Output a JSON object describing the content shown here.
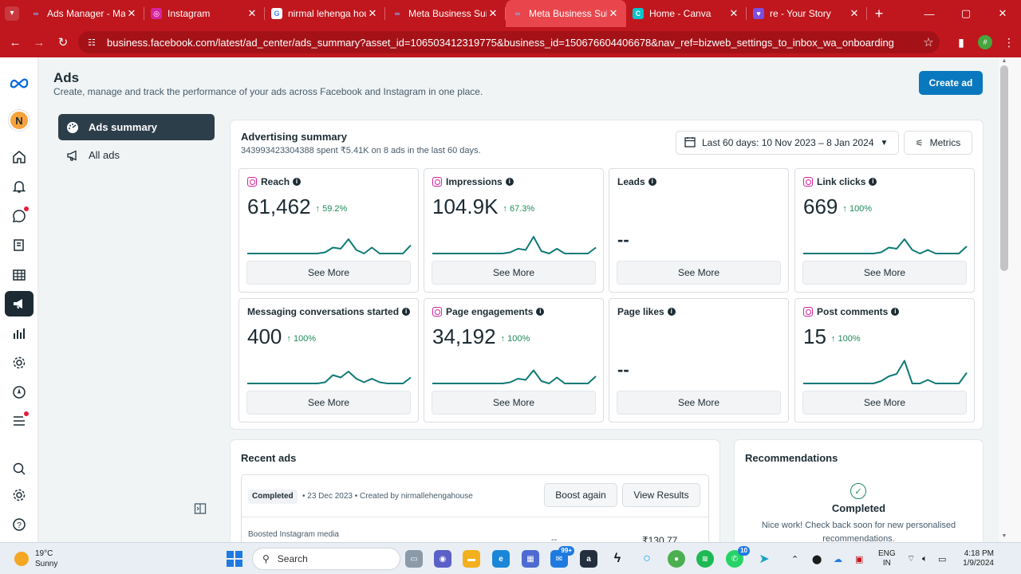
{
  "browser": {
    "tabs": [
      {
        "title": "Ads Manager - Mana",
        "icon": "meta-icon",
        "active": false
      },
      {
        "title": "Instagram",
        "icon": "instagram-icon",
        "active": false
      },
      {
        "title": "nirmal lehenga hous",
        "icon": "google-icon",
        "active": false
      },
      {
        "title": "Meta Business Suite",
        "icon": "meta-icon",
        "active": false
      },
      {
        "title": "Meta Business Suite",
        "icon": "meta-icon",
        "active": true
      },
      {
        "title": "Home - Canva",
        "icon": "canva-icon",
        "active": false
      },
      {
        "title": "re - Your Story",
        "icon": "shield-icon",
        "active": false
      }
    ],
    "url": "business.facebook.com/latest/ad_center/ads_summary?asset_id=106503412319775&business_id=150676604406678&nav_ref=bizweb_settings_to_inbox_wa_onboarding",
    "profile_initial": "#",
    "accent": "#c0161d"
  },
  "rail": {
    "avatar_initial": "N"
  },
  "page": {
    "title": "Ads",
    "subtitle": "Create, manage and track the performance of your ads across Facebook and Instagram in one place.",
    "create_label": "Create ad"
  },
  "subnav": {
    "items": [
      {
        "label": "Ads summary",
        "icon": "dashboard-icon",
        "active": true
      },
      {
        "label": "All ads",
        "icon": "megaphone-icon",
        "active": false
      }
    ]
  },
  "summary": {
    "title": "Advertising summary",
    "subtitle": "343993423304388 spent ₹5.41K on 8 ads in the last 60 days.",
    "date_range": "Last 60 days: 10 Nov 2023 – 8 Jan 2024",
    "metrics_label": "Metrics",
    "see_more": "See More",
    "cards": [
      {
        "label": "Reach",
        "ig": true,
        "value": "61,462",
        "change": "↑ 59.2%",
        "spark": [
          0,
          0,
          0,
          0,
          0,
          0,
          0,
          0,
          0,
          0,
          0.05,
          0.25,
          0.2,
          0.6,
          0.15,
          0.0,
          0.25,
          0.0,
          0.0,
          0.0,
          0.0,
          0.35
        ]
      },
      {
        "label": "Impressions",
        "ig": true,
        "value": "104.9K",
        "change": "↑ 67.3%",
        "spark": [
          0,
          0,
          0,
          0,
          0,
          0,
          0,
          0,
          0,
          0,
          0.05,
          0.2,
          0.15,
          0.7,
          0.1,
          0.0,
          0.2,
          0.0,
          0.0,
          0.0,
          0.0,
          0.25
        ]
      },
      {
        "label": "Leads",
        "ig": false,
        "value": "--",
        "change": "",
        "spark": []
      },
      {
        "label": "Link clicks",
        "ig": true,
        "value": "669",
        "change": "↑ 100%",
        "spark": [
          0,
          0,
          0,
          0,
          0,
          0,
          0,
          0,
          0,
          0,
          0.05,
          0.25,
          0.2,
          0.6,
          0.15,
          0.0,
          0.15,
          0.0,
          0.0,
          0.0,
          0.0,
          0.3
        ]
      },
      {
        "label": "Messaging conversations started",
        "ig": false,
        "value": "400",
        "change": "↑ 100%",
        "spark": [
          0,
          0,
          0,
          0,
          0,
          0,
          0,
          0,
          0,
          0,
          0.05,
          0.35,
          0.25,
          0.5,
          0.2,
          0.05,
          0.2,
          0.05,
          0.0,
          0.0,
          0.0,
          0.25
        ]
      },
      {
        "label": "Page engagements",
        "ig": true,
        "value": "34,192",
        "change": "↑ 100%",
        "spark": [
          0,
          0,
          0,
          0,
          0,
          0,
          0,
          0,
          0,
          0,
          0.05,
          0.2,
          0.15,
          0.55,
          0.1,
          0.0,
          0.25,
          0.0,
          0.0,
          0.0,
          0.0,
          0.3
        ]
      },
      {
        "label": "Page likes",
        "ig": false,
        "value": "--",
        "change": "",
        "spark": []
      },
      {
        "label": "Post comments",
        "ig": true,
        "value": "15",
        "change": "↑ 100%",
        "spark": [
          0,
          0,
          0,
          0,
          0,
          0,
          0,
          0,
          0,
          0,
          0.1,
          0.3,
          0.4,
          0.95,
          0.0,
          0.0,
          0.15,
          0.0,
          0.0,
          0.0,
          0.0,
          0.45
        ]
      }
    ],
    "spark_color": "#0f7a76"
  },
  "recent": {
    "title": "Recent ads",
    "status": "Completed",
    "meta": "• 23 Dec 2023 • Created by nirmallehengahouse",
    "boost_label": "Boost again",
    "view_label": "View Results",
    "media_label": "Boosted Instagram media",
    "media_dash": "--",
    "amount": "₹130.77"
  },
  "recommendations": {
    "title": "Recommendations",
    "status": "Completed",
    "text": "Nice work! Check back soon for new personalised recommendations."
  },
  "taskbar": {
    "temp": "19°C",
    "weather": "Sunny",
    "search_placeholder": "Search",
    "lang1": "ENG",
    "lang2": "IN",
    "time": "4:18 PM",
    "date": "1/9/2024",
    "mail_badge": "99+",
    "whatsapp_badge": "10"
  }
}
